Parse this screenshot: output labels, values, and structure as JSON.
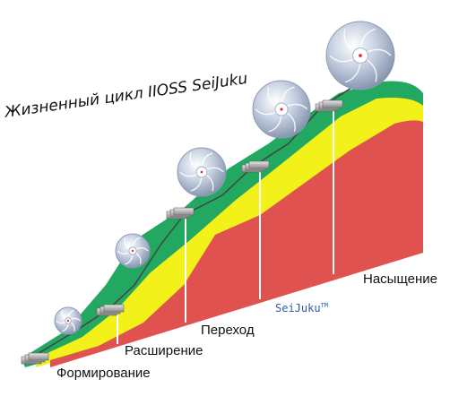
{
  "title": "Жизненный цикл IIOSS SeiJuku",
  "stages": [
    {
      "label": "Формирование"
    },
    {
      "label": "Расширение"
    },
    {
      "label": "Переход"
    },
    {
      "label": "Насыщение"
    }
  ],
  "brand": {
    "name": "SeiJuku",
    "mark": "TM"
  },
  "colors": {
    "red": "#e0524f",
    "yellow": "#f2f21a",
    "green": "#22a860",
    "line": "#444444",
    "divider": "#ffffff",
    "globe": "#b7c3d6"
  },
  "icons": [
    "globe-icon",
    "server-stack-icon"
  ]
}
